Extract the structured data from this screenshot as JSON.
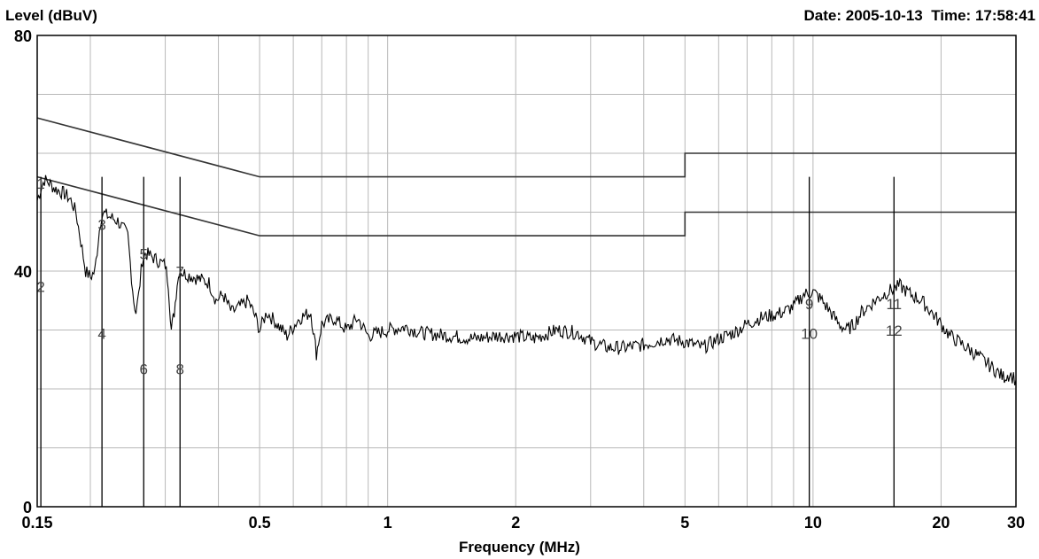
{
  "chart_data": {
    "type": "line",
    "ylabel": "Level (dBuV)",
    "xlabel": "Frequency (MHz)",
    "date_text": "Date: 2005-10-13",
    "time_text": "Time: 17:58:41",
    "x_scale": "log",
    "xlim": [
      0.15,
      30
    ],
    "ylim": [
      0,
      80
    ],
    "grid": true,
    "x_ticks": [
      0.15,
      0.5,
      1,
      2,
      5,
      10,
      20,
      30
    ],
    "x_tick_labels": [
      "0.15",
      "0.5",
      "1",
      "2",
      "5",
      "10",
      "20",
      "30"
    ],
    "y_ticks": [
      0,
      40,
      80
    ],
    "y_tick_labels": [
      "0",
      "40",
      "80"
    ],
    "limit_lines": [
      {
        "points": [
          [
            0.15,
            66
          ],
          [
            0.5,
            56
          ],
          [
            5,
            56
          ],
          [
            5,
            60
          ],
          [
            30,
            60
          ]
        ]
      },
      {
        "points": [
          [
            0.15,
            56
          ],
          [
            0.5,
            46
          ],
          [
            5,
            46
          ],
          [
            5,
            50
          ],
          [
            30,
            50
          ]
        ]
      }
    ],
    "trace": {
      "points": [
        [
          0.15,
          52
        ],
        [
          0.153,
          54
        ],
        [
          0.156,
          55.5
        ],
        [
          0.16,
          55
        ],
        [
          0.165,
          54
        ],
        [
          0.17,
          53.5
        ],
        [
          0.175,
          53
        ],
        [
          0.18,
          52
        ],
        [
          0.185,
          50
        ],
        [
          0.19,
          45
        ],
        [
          0.195,
          40
        ],
        [
          0.2,
          39
        ],
        [
          0.205,
          40
        ],
        [
          0.21,
          47
        ],
        [
          0.213,
          50
        ],
        [
          0.218,
          49.5
        ],
        [
          0.225,
          49
        ],
        [
          0.232,
          48.5
        ],
        [
          0.24,
          47
        ],
        [
          0.245,
          46
        ],
        [
          0.25,
          39
        ],
        [
          0.253,
          35
        ],
        [
          0.256,
          33
        ],
        [
          0.26,
          36
        ],
        [
          0.265,
          42
        ],
        [
          0.27,
          43
        ],
        [
          0.278,
          42.5
        ],
        [
          0.285,
          42
        ],
        [
          0.292,
          41.5
        ],
        [
          0.3,
          41
        ],
        [
          0.305,
          38
        ],
        [
          0.31,
          30
        ],
        [
          0.315,
          33
        ],
        [
          0.32,
          38
        ],
        [
          0.325,
          40
        ],
        [
          0.335,
          39.5
        ],
        [
          0.35,
          39
        ],
        [
          0.365,
          38.5
        ],
        [
          0.38,
          38
        ],
        [
          0.395,
          35
        ],
        [
          0.41,
          36
        ],
        [
          0.43,
          33
        ],
        [
          0.45,
          34
        ],
        [
          0.47,
          35
        ],
        [
          0.49,
          32
        ],
        [
          0.5,
          30
        ],
        [
          0.52,
          33
        ],
        [
          0.55,
          31
        ],
        [
          0.58,
          29
        ],
        [
          0.62,
          32
        ],
        [
          0.66,
          33
        ],
        [
          0.68,
          26
        ],
        [
          0.7,
          31
        ],
        [
          0.75,
          32
        ],
        [
          0.8,
          30
        ],
        [
          0.85,
          32
        ],
        [
          0.9,
          29
        ],
        [
          1,
          30
        ],
        [
          1.1,
          30.5
        ],
        [
          1.2,
          29.5
        ],
        [
          1.4,
          29
        ],
        [
          1.6,
          28.5
        ],
        [
          1.8,
          29
        ],
        [
          2,
          29
        ],
        [
          2.2,
          28.5
        ],
        [
          2.5,
          30
        ],
        [
          2.8,
          29.5
        ],
        [
          3,
          28
        ],
        [
          3.3,
          27
        ],
        [
          3.6,
          27
        ],
        [
          4,
          27.5
        ],
        [
          4.5,
          28.5
        ],
        [
          5,
          28
        ],
        [
          5.5,
          27
        ],
        [
          6,
          28.5
        ],
        [
          6.5,
          29.5
        ],
        [
          7,
          31
        ],
        [
          7.5,
          32
        ],
        [
          8,
          32.5
        ],
        [
          8.5,
          33
        ],
        [
          9,
          34
        ],
        [
          9.5,
          36
        ],
        [
          10,
          36.5
        ],
        [
          10.5,
          35
        ],
        [
          11,
          33
        ],
        [
          11.5,
          31
        ],
        [
          12,
          30
        ],
        [
          12.5,
          31
        ],
        [
          13,
          33
        ],
        [
          14,
          35
        ],
        [
          15,
          36.5
        ],
        [
          16,
          37.5
        ],
        [
          17,
          36
        ],
        [
          18,
          35
        ],
        [
          19,
          33
        ],
        [
          20,
          31
        ],
        [
          21,
          29
        ],
        [
          22,
          28
        ],
        [
          23,
          27
        ],
        [
          24,
          26
        ],
        [
          25,
          25
        ],
        [
          26,
          24
        ],
        [
          27,
          23
        ],
        [
          28,
          22
        ],
        [
          29,
          22.5
        ],
        [
          30,
          21.5
        ]
      ]
    },
    "markers": [
      {
        "label": "1",
        "x": 0.153
      },
      {
        "label": "2",
        "x": 0.153
      },
      {
        "label": "3",
        "x": 0.213
      },
      {
        "label": "4",
        "x": 0.213
      },
      {
        "label": "5",
        "x": 0.267
      },
      {
        "label": "6",
        "x": 0.267
      },
      {
        "label": "7",
        "x": 0.325
      },
      {
        "label": "8",
        "x": 0.325
      },
      {
        "label": "9",
        "x": 9.8
      },
      {
        "label": "10",
        "x": 9.8
      },
      {
        "label": "11",
        "x": 15.5
      },
      {
        "label": "12",
        "x": 15.5
      }
    ],
    "marker_label_levels": [
      {
        "label": "1",
        "y": 54
      },
      {
        "label": "2",
        "y": 36.5
      },
      {
        "label": "3",
        "y": 47
      },
      {
        "label": "4",
        "y": 28.5
      },
      {
        "label": "5",
        "y": 42
      },
      {
        "label": "6",
        "y": 22.5
      },
      {
        "label": "7",
        "y": 39
      },
      {
        "label": "8",
        "y": 22.5
      },
      {
        "label": "9",
        "y": 33.5
      },
      {
        "label": "10",
        "y": 28.5
      },
      {
        "label": "11",
        "y": 33.5
      },
      {
        "label": "12",
        "y": 29
      }
    ],
    "colors": {
      "trace": "#000000",
      "limit": "#333333",
      "grid": "#b8b8b8",
      "frame": "#000000"
    }
  }
}
